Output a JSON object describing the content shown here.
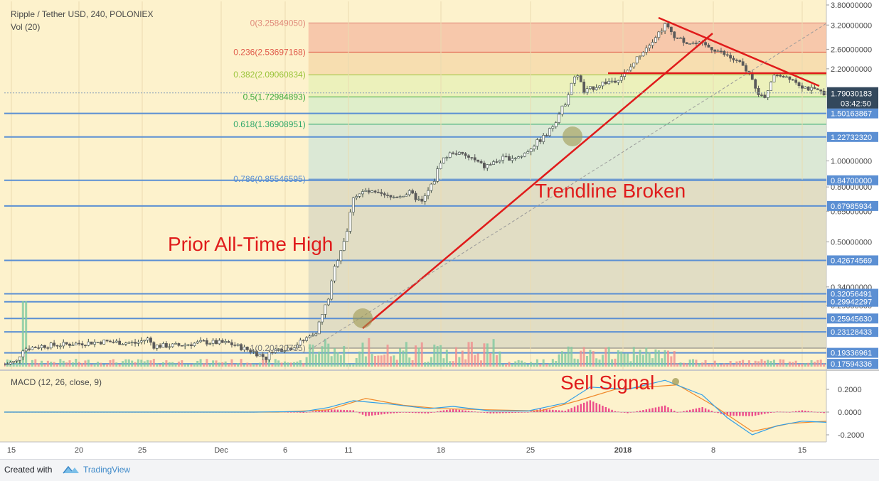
{
  "header": {
    "title": "Ripple / Tether USD, 240, POLONIEX",
    "volume_label": "Vol (20)",
    "macd_label": "MACD (12, 26, close, 9)"
  },
  "annotations": {
    "prior_ath": "Prior All-Time High",
    "trendline_broken": "Trendline Broken",
    "sell_signal": "Sell Signal"
  },
  "colors": {
    "background": "#fdf2cc",
    "horizontal_level": "#5b8fd3",
    "trendline": "#e01b1b",
    "annotation_text": "#e01b1b",
    "candle_up": "#3c4a43",
    "candle_down": "#5a5a5a",
    "macd_line": "#2f9ee8",
    "signal_line": "#f08a2c",
    "histogram": "#e9307f",
    "volume_up": "#7fc9a0",
    "volume_down": "#f08f8f"
  },
  "footer": {
    "created_with": "Created with",
    "brand": "TradingView"
  },
  "chart_data": [
    {
      "type": "candlestick",
      "title": "Ripple / Tether USD, 240, POLONIEX",
      "x_tick_labels": [
        "15",
        "20",
        "25",
        "Dec",
        "6",
        "11",
        "18",
        "25",
        "2018",
        "8",
        "15"
      ],
      "y_axis": {
        "scale": "log",
        "tick_labels": [
          "3.80000000",
          "3.20000000",
          "2.60000000",
          "2.20000000",
          "1.00000000",
          "0.80000000",
          "0.65000000",
          "0.50000000",
          "0.34000000",
          "0.29000000"
        ],
        "tick_values": [
          3.8,
          3.2,
          2.6,
          2.2,
          1.0,
          0.8,
          0.65,
          0.5,
          0.34,
          0.29
        ]
      },
      "current_price": {
        "label": "1.79030183",
        "value": 1.79030183,
        "countdown": "03:42:50"
      },
      "fibonacci_levels": [
        {
          "label": "0(3.25849050)",
          "ratio": 0,
          "price": 3.2584905,
          "color": "#e08a7a"
        },
        {
          "label": "0.236(2.53697168)",
          "ratio": 0.236,
          "price": 2.53697168,
          "color": "#e05a4a"
        },
        {
          "label": "0.382(2.09060834)",
          "ratio": 0.382,
          "price": 2.09060834,
          "color": "#9ac43a"
        },
        {
          "label": "0.5(1.72984893)",
          "ratio": 0.5,
          "price": 1.72984893,
          "color": "#3aa83a"
        },
        {
          "label": "0.618(1.36908951)",
          "ratio": 0.618,
          "price": 1.36908951,
          "color": "#2fa86a"
        },
        {
          "label": "0.786(0.85546595)",
          "ratio": 0.786,
          "price": 0.85546595,
          "color": "#5a8fd3"
        },
        {
          "label": "1(0.20120735)",
          "ratio": 1,
          "price": 0.20120735,
          "color": "#7a7a7a"
        }
      ],
      "horizontal_levels": [
        {
          "label": "1.50163867",
          "value": 1.50163867
        },
        {
          "label": "1.22732320",
          "value": 1.2273232
        },
        {
          "label": "0.84700000",
          "value": 0.847
        },
        {
          "label": "0.67985934",
          "value": 0.67985934
        },
        {
          "label": "0.42674569",
          "value": 0.42674569
        },
        {
          "label": "0.32056491",
          "value": 0.32056491
        },
        {
          "label": "0.29942297",
          "value": 0.29942297
        },
        {
          "label": "0.25945630",
          "value": 0.2594563
        },
        {
          "label": "0.23128433",
          "value": 0.23128433
        },
        {
          "label": "0.19336961",
          "value": 0.19336961
        },
        {
          "label": "0.17594336",
          "value": 0.17594336
        }
      ],
      "price_path": [
        {
          "d": 0,
          "price": 0.175
        },
        {
          "d": 1,
          "price": 0.18
        },
        {
          "d": 1.5,
          "price": 0.2
        },
        {
          "d": 3,
          "price": 0.205
        },
        {
          "d": 5,
          "price": 0.208
        },
        {
          "d": 8,
          "price": 0.213
        },
        {
          "d": 10.5,
          "price": 0.21
        },
        {
          "d": 11.5,
          "price": 0.218
        },
        {
          "d": 12,
          "price": 0.205
        },
        {
          "d": 14,
          "price": 0.206
        },
        {
          "d": 16,
          "price": 0.212
        },
        {
          "d": 18,
          "price": 0.21
        },
        {
          "d": 20,
          "price": 0.195
        },
        {
          "d": 21,
          "price": 0.185
        },
        {
          "d": 21.5,
          "price": 0.198
        },
        {
          "d": 23,
          "price": 0.202
        },
        {
          "d": 24,
          "price": 0.215
        },
        {
          "d": 25,
          "price": 0.232
        },
        {
          "d": 26,
          "price": 0.31
        },
        {
          "d": 26.5,
          "price": 0.4
        },
        {
          "d": 27,
          "price": 0.47
        },
        {
          "d": 27.5,
          "price": 0.55
        },
        {
          "d": 28,
          "price": 0.74
        },
        {
          "d": 29,
          "price": 0.77
        },
        {
          "d": 31,
          "price": 0.73
        },
        {
          "d": 32.5,
          "price": 0.76
        },
        {
          "d": 33.5,
          "price": 0.7
        },
        {
          "d": 34.5,
          "price": 0.85
        },
        {
          "d": 35,
          "price": 1.0
        },
        {
          "d": 36,
          "price": 1.08
        },
        {
          "d": 37.5,
          "price": 1.02
        },
        {
          "d": 38.5,
          "price": 0.95
        },
        {
          "d": 40,
          "price": 1.02
        },
        {
          "d": 41.5,
          "price": 1.04
        },
        {
          "d": 42.5,
          "price": 1.15
        },
        {
          "d": 43.5,
          "price": 1.25
        },
        {
          "d": 44,
          "price": 1.35
        },
        {
          "d": 45,
          "price": 1.65
        },
        {
          "d": 45.5,
          "price": 1.95
        },
        {
          "d": 46,
          "price": 2.1
        },
        {
          "d": 46.5,
          "price": 1.8
        },
        {
          "d": 47,
          "price": 1.85
        },
        {
          "d": 48,
          "price": 1.95
        },
        {
          "d": 49,
          "price": 2.0
        },
        {
          "d": 50,
          "price": 2.15
        },
        {
          "d": 51,
          "price": 2.5
        },
        {
          "d": 52.5,
          "price": 3.0
        },
        {
          "d": 53,
          "price": 3.2
        },
        {
          "d": 54,
          "price": 2.85
        },
        {
          "d": 55,
          "price": 2.75
        },
        {
          "d": 56,
          "price": 2.7
        },
        {
          "d": 57,
          "price": 2.6
        },
        {
          "d": 58,
          "price": 2.45
        },
        {
          "d": 59,
          "price": 2.3
        },
        {
          "d": 60,
          "price": 2.05
        },
        {
          "d": 60.5,
          "price": 1.75
        },
        {
          "d": 61,
          "price": 1.7
        },
        {
          "d": 61.5,
          "price": 2.0
        },
        {
          "d": 62,
          "price": 2.1
        },
        {
          "d": 63,
          "price": 2.05
        },
        {
          "d": 64,
          "price": 1.9
        },
        {
          "d": 65,
          "price": 1.82
        },
        {
          "d": 66,
          "price": 1.79
        }
      ],
      "macd_axis": {
        "tick_labels": [
          "0.2000",
          "0.0000",
          "-0.2000"
        ],
        "tick_values": [
          0.2,
          0.0,
          -0.2
        ]
      },
      "macd_series": [
        {
          "d": 0,
          "v": 0
        },
        {
          "d": 20,
          "v": 0
        },
        {
          "d": 24,
          "v": 0.005
        },
        {
          "d": 26,
          "v": 0.04
        },
        {
          "d": 28,
          "v": 0.1
        },
        {
          "d": 31,
          "v": 0.07
        },
        {
          "d": 34,
          "v": 0.03
        },
        {
          "d": 36,
          "v": 0.05
        },
        {
          "d": 39,
          "v": 0.01
        },
        {
          "d": 42,
          "v": 0.01
        },
        {
          "d": 45,
          "v": 0.08
        },
        {
          "d": 47,
          "v": 0.22
        },
        {
          "d": 50,
          "v": 0.2
        },
        {
          "d": 53,
          "v": 0.28
        },
        {
          "d": 56,
          "v": 0.15
        },
        {
          "d": 58,
          "v": -0.05
        },
        {
          "d": 60,
          "v": -0.2
        },
        {
          "d": 62,
          "v": -0.12
        },
        {
          "d": 64,
          "v": -0.08
        },
        {
          "d": 66,
          "v": -0.09
        }
      ],
      "signal_series": [
        {
          "d": 0,
          "v": 0
        },
        {
          "d": 22,
          "v": 0
        },
        {
          "d": 26,
          "v": 0.02
        },
        {
          "d": 29,
          "v": 0.12
        },
        {
          "d": 32,
          "v": 0.06
        },
        {
          "d": 35,
          "v": 0.03
        },
        {
          "d": 39,
          "v": 0.02
        },
        {
          "d": 43,
          "v": 0.01
        },
        {
          "d": 46,
          "v": 0.1
        },
        {
          "d": 49,
          "v": 0.2
        },
        {
          "d": 54,
          "v": 0.24
        },
        {
          "d": 57,
          "v": 0.05
        },
        {
          "d": 60,
          "v": -0.17
        },
        {
          "d": 63,
          "v": -0.1
        },
        {
          "d": 66,
          "v": -0.08
        }
      ]
    }
  ]
}
